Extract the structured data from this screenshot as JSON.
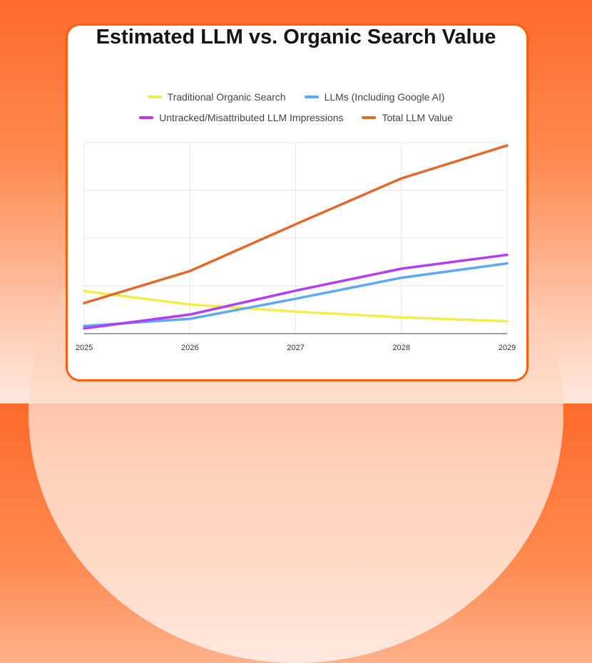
{
  "title": "Estimated LLM vs. Organic Search Value",
  "chart_data": {
    "type": "line",
    "title": "Estimated LLM vs. Organic Search Value",
    "x": [
      "2025",
      "2026",
      "2027",
      "2028",
      "2029"
    ],
    "ylim": [
      0,
      4
    ],
    "y_tick_labels_shown": false,
    "grid": true,
    "legend_placement": "top",
    "series": [
      {
        "name": "Traditional Organic Search",
        "color": "#f3ec4a",
        "values": [
          0.89,
          0.61,
          0.46,
          0.34,
          0.26
        ]
      },
      {
        "name": "LLMs (Including Google AI)",
        "color": "#5fa9f2",
        "values": [
          0.16,
          0.31,
          0.73,
          1.17,
          1.47
        ]
      },
      {
        "name": "Untracked/Misattributed LLM Impressions",
        "color": "#b43cf6",
        "values": [
          0.11,
          0.4,
          0.9,
          1.36,
          1.65
        ]
      },
      {
        "name": "Total LLM Value",
        "color": "#e0692c",
        "values": [
          0.64,
          1.31,
          2.29,
          3.25,
          3.94
        ]
      }
    ]
  }
}
